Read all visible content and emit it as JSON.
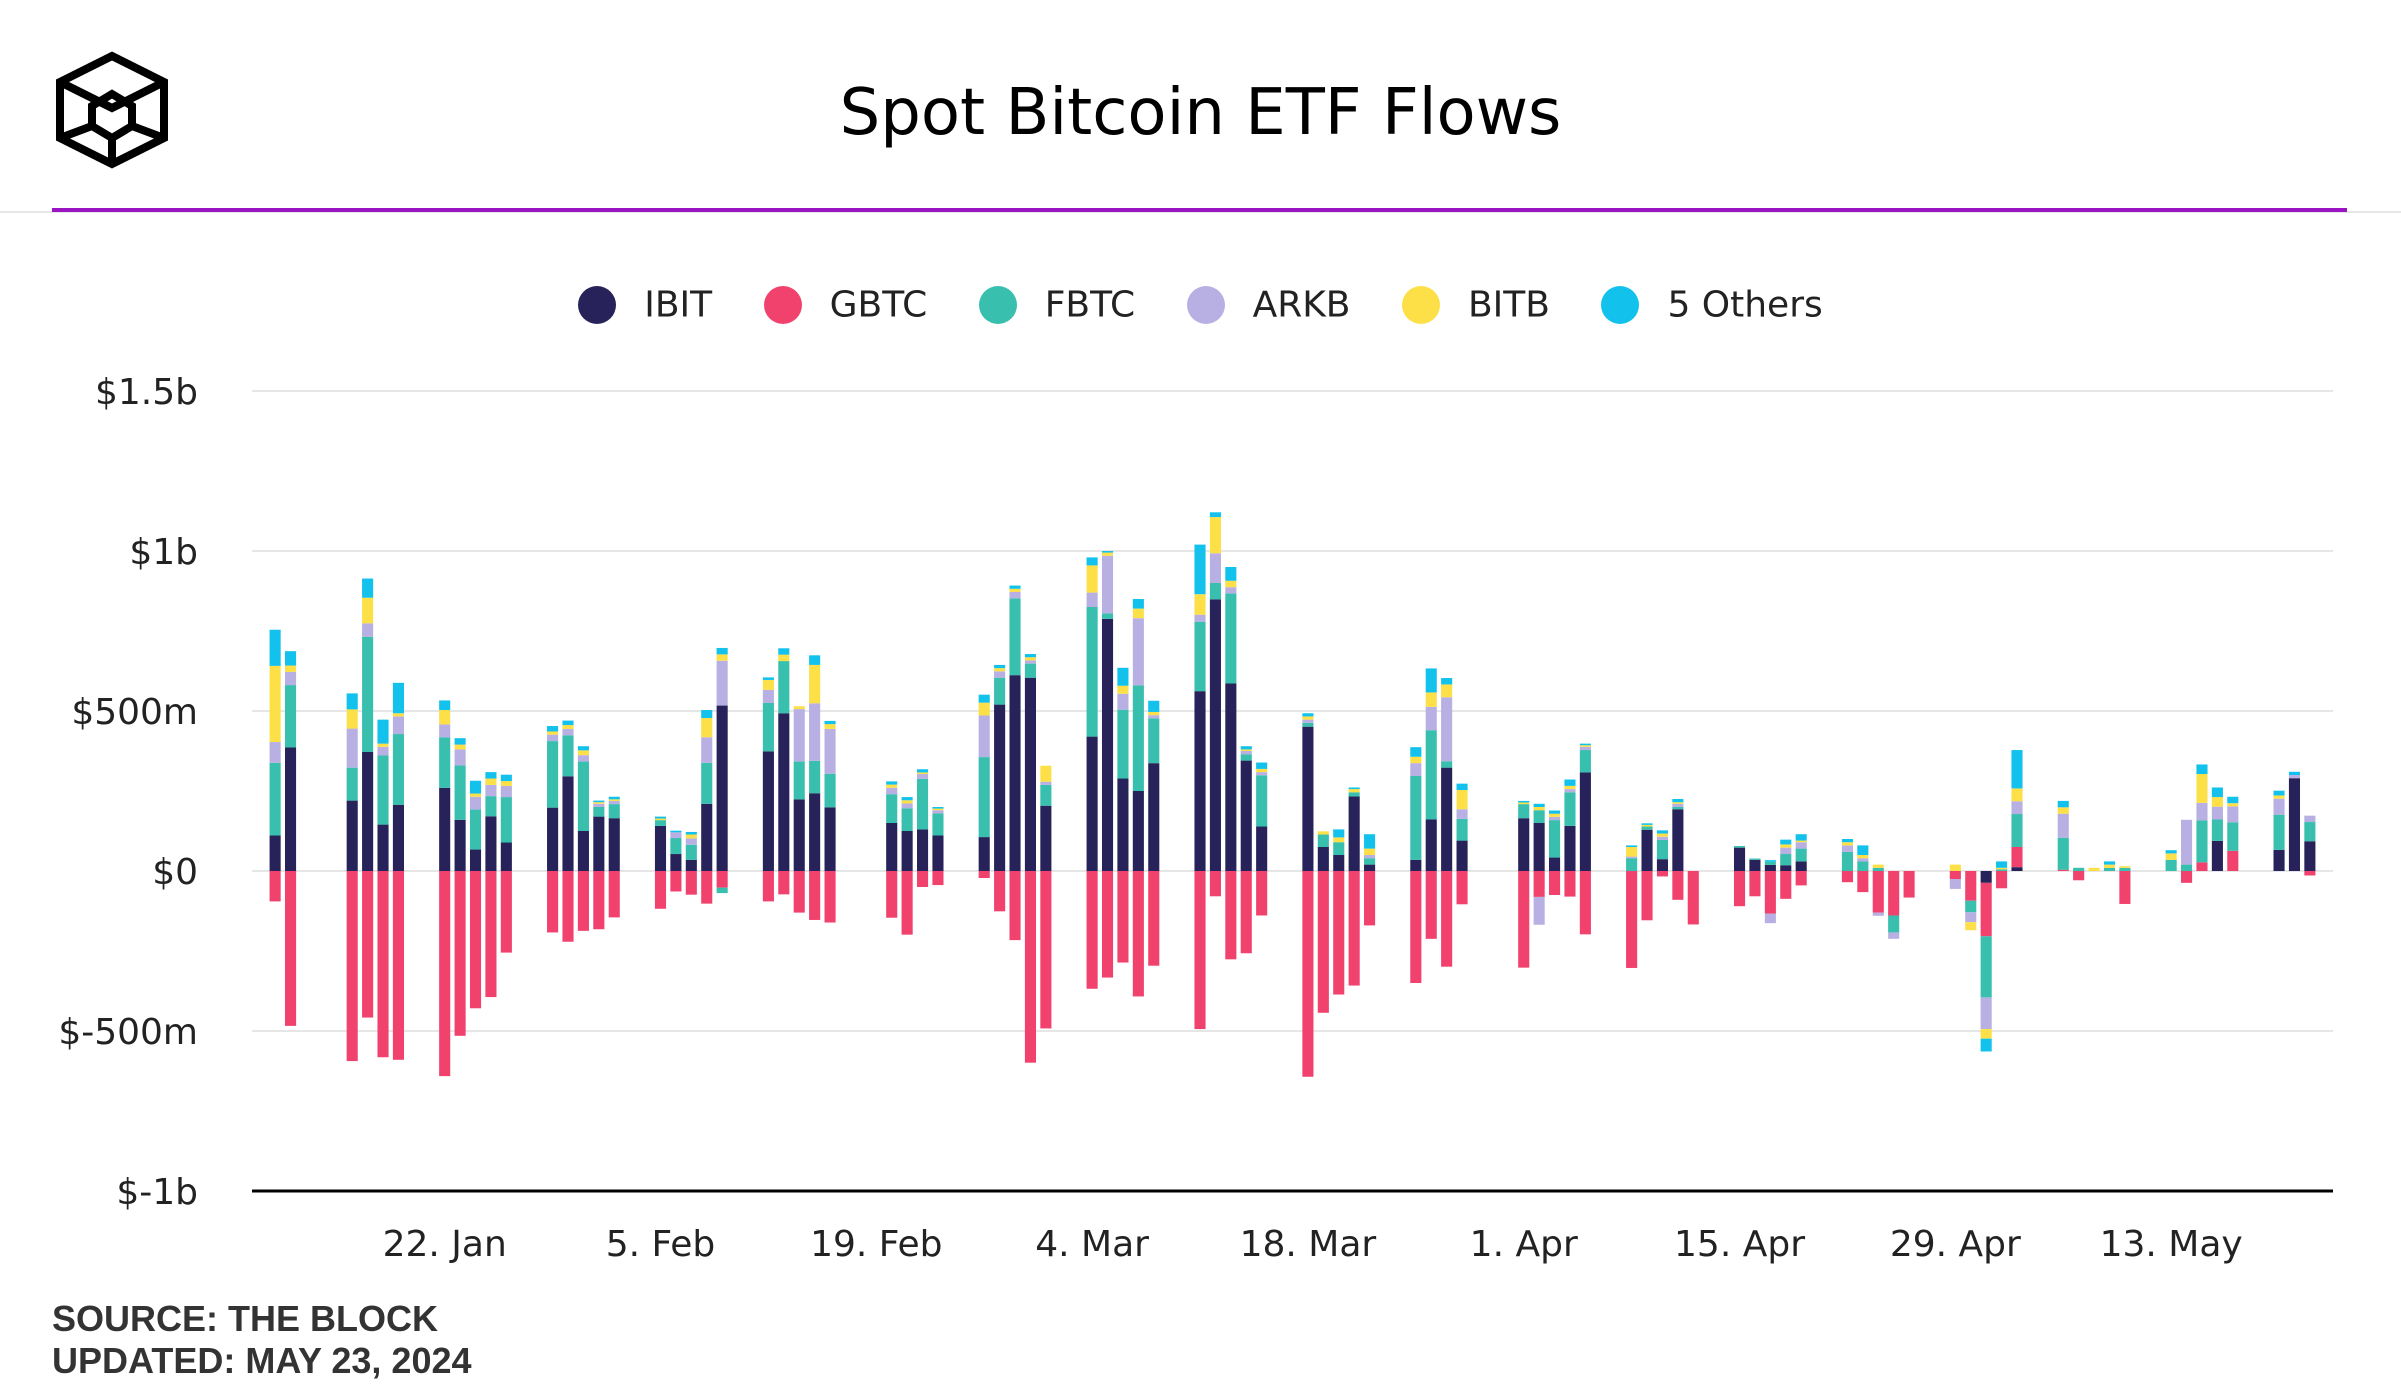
{
  "header": {
    "title": "Spot Bitcoin ETF Flows",
    "logo_icon": "the-block-cube-icon"
  },
  "footer": {
    "source": "SOURCE: THE BLOCK",
    "updated": "UPDATED: MAY 23, 2024"
  },
  "colors": {
    "IBIT": "#27235a",
    "GBTC": "#f1426e",
    "FBTC": "#38bfae",
    "ARKB": "#b8b0e2",
    "BITB": "#fde047",
    "Others": "#12c2ec",
    "accent": "#9a14c4"
  },
  "legend": [
    {
      "key": "IBIT",
      "label": "IBIT"
    },
    {
      "key": "GBTC",
      "label": "GBTC"
    },
    {
      "key": "FBTC",
      "label": "FBTC"
    },
    {
      "key": "ARKB",
      "label": "ARKB"
    },
    {
      "key": "BITB",
      "label": "BITB"
    },
    {
      "key": "Others",
      "label": "5 Others"
    }
  ],
  "chart_data": {
    "type": "bar",
    "stacked": true,
    "title": "Spot Bitcoin ETF Flows",
    "legend_position": "top-center",
    "grid": true,
    "y_unit": "USD millions",
    "ylim": [
      -1000,
      1500
    ],
    "y_ticks": [
      {
        "value": 1500,
        "label": "$1.5b"
      },
      {
        "value": 1000,
        "label": "$1b"
      },
      {
        "value": 500,
        "label": "$500m"
      },
      {
        "value": 0,
        "label": "$0"
      },
      {
        "value": -500,
        "label": "$-500m"
      },
      {
        "value": -1000,
        "label": "$-1b"
      }
    ],
    "x_ticks": [
      {
        "label": "22. Jan",
        "date": "2024-01-22"
      },
      {
        "label": "5. Feb",
        "date": "2024-02-05"
      },
      {
        "label": "19. Feb",
        "date": "2024-02-19"
      },
      {
        "label": "4. Mar",
        "date": "2024-03-04"
      },
      {
        "label": "18. Mar",
        "date": "2024-03-18"
      },
      {
        "label": "1. Apr",
        "date": "2024-04-01"
      },
      {
        "label": "15. Apr",
        "date": "2024-04-15"
      },
      {
        "label": "29. Apr",
        "date": "2024-04-29"
      },
      {
        "label": "13. May",
        "date": "2024-05-13"
      }
    ],
    "x_range": [
      "2024-01-10",
      "2024-05-24"
    ],
    "series_order": [
      "IBIT",
      "GBTC",
      "FBTC",
      "ARKB",
      "BITB",
      "Others"
    ],
    "days": [
      {
        "date": "2024-01-11",
        "IBIT": 111,
        "GBTC": -95,
        "FBTC": 227,
        "ARKB": 65,
        "BITB": 238,
        "Others": 113
      },
      {
        "date": "2024-01-12",
        "IBIT": 386,
        "GBTC": -484,
        "FBTC": 195,
        "ARKB": 41,
        "BITB": 20,
        "Others": 45
      },
      {
        "date": "2024-01-16",
        "IBIT": 220,
        "GBTC": -594,
        "FBTC": 103,
        "ARKB": 122,
        "BITB": 60,
        "Others": 50
      },
      {
        "date": "2024-01-17",
        "IBIT": 372,
        "GBTC": -458,
        "FBTC": 360,
        "ARKB": 42,
        "BITB": 80,
        "Others": 60
      },
      {
        "date": "2024-01-18",
        "IBIT": 145,
        "GBTC": -582,
        "FBTC": 216,
        "ARKB": 27,
        "BITB": 10,
        "Others": 75
      },
      {
        "date": "2024-01-19",
        "IBIT": 207,
        "GBTC": -590,
        "FBTC": 221,
        "ARKB": 55,
        "BITB": 10,
        "Others": 95
      },
      {
        "date": "2024-01-22",
        "IBIT": 260,
        "GBTC": -641,
        "FBTC": 158,
        "ARKB": 40,
        "BITB": 45,
        "Others": 30
      },
      {
        "date": "2024-01-23",
        "IBIT": 160,
        "GBTC": -515,
        "FBTC": 170,
        "ARKB": 50,
        "BITB": 15,
        "Others": 20
      },
      {
        "date": "2024-01-24",
        "IBIT": 67,
        "GBTC": -429,
        "FBTC": 125,
        "ARKB": 40,
        "BITB": 10,
        "Others": 40
      },
      {
        "date": "2024-01-25",
        "IBIT": 171,
        "GBTC": -394,
        "FBTC": 63,
        "ARKB": 35,
        "BITB": 20,
        "Others": 20
      },
      {
        "date": "2024-01-26",
        "IBIT": 89,
        "GBTC": -255,
        "FBTC": 142,
        "ARKB": 35,
        "BITB": 15,
        "Others": 20
      },
      {
        "date": "2024-01-29",
        "IBIT": 198,
        "GBTC": -192,
        "FBTC": 208,
        "ARKB": 20,
        "BITB": 10,
        "Others": 17
      },
      {
        "date": "2024-01-30",
        "IBIT": 296,
        "GBTC": -221,
        "FBTC": 128,
        "ARKB": 20,
        "BITB": 12,
        "Others": 14
      },
      {
        "date": "2024-01-31",
        "IBIT": 125,
        "GBTC": -187,
        "FBTC": 217,
        "ARKB": 20,
        "BITB": 15,
        "Others": 13
      },
      {
        "date": "2024-02-01",
        "IBIT": 170,
        "GBTC": -182,
        "FBTC": 30,
        "ARKB": 10,
        "BITB": 5,
        "Others": 5
      },
      {
        "date": "2024-02-02",
        "IBIT": 165,
        "GBTC": -145,
        "FBTC": 44,
        "ARKB": 10,
        "BITB": 5,
        "Others": 8
      },
      {
        "date": "2024-02-05",
        "IBIT": 141,
        "GBTC": -118,
        "FBTC": 18,
        "ARKB": 0,
        "BITB": 5,
        "Others": 6
      },
      {
        "date": "2024-02-06",
        "IBIT": 53,
        "GBTC": -64,
        "FBTC": 50,
        "ARKB": 18,
        "BITB": 0,
        "Others": 5
      },
      {
        "date": "2024-02-07",
        "IBIT": 35,
        "GBTC": -74,
        "FBTC": 47,
        "ARKB": 20,
        "BITB": 12,
        "Others": 8
      },
      {
        "date": "2024-02-08",
        "IBIT": 210,
        "GBTC": -102,
        "FBTC": 128,
        "ARKB": 80,
        "BITB": 60,
        "Others": 25
      },
      {
        "date": "2024-02-09",
        "IBIT": 517,
        "GBTC": -52,
        "FBTC": -17,
        "ARKB": 140,
        "BITB": 20,
        "Others": 20
      },
      {
        "date": "2024-02-12",
        "IBIT": 374,
        "GBTC": -95,
        "FBTC": 151,
        "ARKB": 41,
        "BITB": 31,
        "Others": 8
      },
      {
        "date": "2024-02-13",
        "IBIT": 493,
        "GBTC": -73,
        "FBTC": 163,
        "ARKB": 0,
        "BITB": 20,
        "Others": 20
      },
      {
        "date": "2024-02-14",
        "IBIT": 224,
        "GBTC": -130,
        "FBTC": 118,
        "ARKB": 164,
        "BITB": 9,
        "Others": 0
      },
      {
        "date": "2024-02-15",
        "IBIT": 243,
        "GBTC": -153,
        "FBTC": 101,
        "ARKB": 180,
        "BITB": 120,
        "Others": 30
      },
      {
        "date": "2024-02-16",
        "IBIT": 199,
        "GBTC": -161,
        "FBTC": 105,
        "ARKB": 140,
        "BITB": 15,
        "Others": 10
      },
      {
        "date": "2024-02-20",
        "IBIT": 150,
        "GBTC": -146,
        "FBTC": 90,
        "ARKB": 20,
        "BITB": 10,
        "Others": 10
      },
      {
        "date": "2024-02-21",
        "IBIT": 125,
        "GBTC": -199,
        "FBTC": 71,
        "ARKB": 15,
        "BITB": 10,
        "Others": 10
      },
      {
        "date": "2024-02-22",
        "IBIT": 130,
        "GBTC": -50,
        "FBTC": 158,
        "ARKB": 15,
        "BITB": 5,
        "Others": 10
      },
      {
        "date": "2024-02-23",
        "IBIT": 111,
        "GBTC": -44,
        "FBTC": 69,
        "ARKB": 10,
        "BITB": 5,
        "Others": 5
      },
      {
        "date": "2024-02-26",
        "IBIT": 106,
        "GBTC": -22,
        "FBTC": 250,
        "ARKB": 130,
        "BITB": 40,
        "Others": 25
      },
      {
        "date": "2024-02-27",
        "IBIT": 520,
        "GBTC": -126,
        "FBTC": 84,
        "ARKB": 20,
        "BITB": 10,
        "Others": 10
      },
      {
        "date": "2024-02-28",
        "IBIT": 612,
        "GBTC": -216,
        "FBTC": 240,
        "ARKB": 20,
        "BITB": 10,
        "Others": 10
      },
      {
        "date": "2024-02-29",
        "IBIT": 604,
        "GBTC": -599,
        "FBTC": 44,
        "ARKB": 10,
        "BITB": 10,
        "Others": 10
      },
      {
        "date": "2024-03-01",
        "IBIT": 204,
        "GBTC": -492,
        "FBTC": 65,
        "ARKB": 10,
        "BITB": 50,
        "Others": 0
      },
      {
        "date": "2024-03-04",
        "IBIT": 420,
        "GBTC": -368,
        "FBTC": 405,
        "ARKB": 45,
        "BITB": 85,
        "Others": 25
      },
      {
        "date": "2024-03-05",
        "IBIT": 788,
        "GBTC": -333,
        "FBTC": 17,
        "ARKB": 180,
        "BITB": 10,
        "Others": 5
      },
      {
        "date": "2024-03-06",
        "IBIT": 289,
        "GBTC": -286,
        "FBTC": 215,
        "ARKB": 50,
        "BITB": 25,
        "Others": 56
      },
      {
        "date": "2024-03-07",
        "IBIT": 250,
        "GBTC": -392,
        "FBTC": 330,
        "ARKB": 210,
        "BITB": 30,
        "Others": 30
      },
      {
        "date": "2024-03-08",
        "IBIT": 337,
        "GBTC": -296,
        "FBTC": 140,
        "ARKB": 10,
        "BITB": 10,
        "Others": 35
      },
      {
        "date": "2024-03-11",
        "IBIT": 562,
        "GBTC": -494,
        "FBTC": 217,
        "ARKB": 22,
        "BITB": 64,
        "Others": 155
      },
      {
        "date": "2024-03-12",
        "IBIT": 849,
        "GBTC": -79,
        "FBTC": 51,
        "ARKB": 93,
        "BITB": 113,
        "Others": 15
      },
      {
        "date": "2024-03-13",
        "IBIT": 586,
        "GBTC": -276,
        "FBTC": 281,
        "ARKB": 20,
        "BITB": 20,
        "Others": 43
      },
      {
        "date": "2024-03-14",
        "IBIT": 345,
        "GBTC": -257,
        "FBTC": 20,
        "ARKB": 10,
        "BITB": 5,
        "Others": 10
      },
      {
        "date": "2024-03-15",
        "IBIT": 139,
        "GBTC": -139,
        "FBTC": 160,
        "ARKB": 10,
        "BITB": 10,
        "Others": 20
      },
      {
        "date": "2024-03-18",
        "IBIT": 451,
        "GBTC": -643,
        "FBTC": 12,
        "ARKB": 10,
        "BITB": 10,
        "Others": 10
      },
      {
        "date": "2024-03-19",
        "IBIT": 75,
        "GBTC": -443,
        "FBTC": 39,
        "ARKB": 0,
        "BITB": 10,
        "Others": 0
      },
      {
        "date": "2024-03-20",
        "IBIT": 50,
        "GBTC": -386,
        "FBTC": 40,
        "ARKB": 0,
        "BITB": 15,
        "Others": 25
      },
      {
        "date": "2024-03-21",
        "IBIT": 233,
        "GBTC": -358,
        "FBTC": 13,
        "ARKB": 0,
        "BITB": 10,
        "Others": 5
      },
      {
        "date": "2024-03-22",
        "IBIT": 20,
        "GBTC": -170,
        "FBTC": 20,
        "ARKB": 10,
        "BITB": 20,
        "Others": 45
      },
      {
        "date": "2024-03-25",
        "IBIT": 35,
        "GBTC": -350,
        "FBTC": 262,
        "ARKB": 40,
        "BITB": 20,
        "Others": 30
      },
      {
        "date": "2024-03-26",
        "IBIT": 161,
        "GBTC": -212,
        "FBTC": 279,
        "ARKB": 73,
        "BITB": 45,
        "Others": 75
      },
      {
        "date": "2024-03-27",
        "IBIT": 323,
        "GBTC": -299,
        "FBTC": 20,
        "ARKB": 200,
        "BITB": 40,
        "Others": 20
      },
      {
        "date": "2024-03-28",
        "IBIT": 95,
        "GBTC": -104,
        "FBTC": 68,
        "ARKB": 30,
        "BITB": 60,
        "Others": 20
      },
      {
        "date": "2024-04-01",
        "IBIT": 165,
        "GBTC": -302,
        "FBTC": 44,
        "ARKB": 0,
        "BITB": 5,
        "Others": 5
      },
      {
        "date": "2024-04-02",
        "IBIT": 150,
        "GBTC": -81,
        "FBTC": 40,
        "ARKB": -87,
        "BITB": 10,
        "Others": 10
      },
      {
        "date": "2024-04-03",
        "IBIT": 42,
        "GBTC": -75,
        "FBTC": 117,
        "ARKB": 10,
        "BITB": 10,
        "Others": 10
      },
      {
        "date": "2024-04-04",
        "IBIT": 141,
        "GBTC": -80,
        "FBTC": 105,
        "ARKB": 10,
        "BITB": 10,
        "Others": 20
      },
      {
        "date": "2024-04-05",
        "IBIT": 308,
        "GBTC": -198,
        "FBTC": 70,
        "ARKB": 10,
        "BITB": 5,
        "Others": 5
      },
      {
        "date": "2024-04-08",
        "IBIT": 0,
        "GBTC": -303,
        "FBTC": 40,
        "ARKB": 5,
        "BITB": 30,
        "Others": 5
      },
      {
        "date": "2024-04-09",
        "IBIT": 129,
        "GBTC": -154,
        "FBTC": 10,
        "ARKB": 0,
        "BITB": 5,
        "Others": 5
      },
      {
        "date": "2024-04-10",
        "IBIT": 37,
        "GBTC": -17,
        "FBTC": 60,
        "ARKB": 10,
        "BITB": 10,
        "Others": 10
      },
      {
        "date": "2024-04-11",
        "IBIT": 193,
        "GBTC": -90,
        "FBTC": 7,
        "ARKB": 10,
        "BITB": 5,
        "Others": 10
      },
      {
        "date": "2024-04-12",
        "IBIT": 0,
        "GBTC": -167,
        "FBTC": 0,
        "ARKB": 0,
        "BITB": 0,
        "Others": 0
      },
      {
        "date": "2024-04-15",
        "IBIT": 73,
        "GBTC": -110,
        "FBTC": 5,
        "ARKB": 0,
        "BITB": 0,
        "Others": 0
      },
      {
        "date": "2024-04-16",
        "IBIT": 35,
        "GBTC": -79,
        "FBTC": 4,
        "ARKB": 0,
        "BITB": 0,
        "Others": 0
      },
      {
        "date": "2024-04-17",
        "IBIT": 19,
        "GBTC": -133,
        "FBTC": 10,
        "ARKB": -30,
        "BITB": 0,
        "Others": 5
      },
      {
        "date": "2024-04-18",
        "IBIT": 18,
        "GBTC": -87,
        "FBTC": 35,
        "ARKB": 20,
        "BITB": 10,
        "Others": 15
      },
      {
        "date": "2024-04-19",
        "IBIT": 30,
        "GBTC": -45,
        "FBTC": 40,
        "ARKB": 20,
        "BITB": 5,
        "Others": 20
      },
      {
        "date": "2024-04-22",
        "IBIT": 0,
        "GBTC": -35,
        "FBTC": 60,
        "ARKB": 20,
        "BITB": 10,
        "Others": 10
      },
      {
        "date": "2024-04-23",
        "IBIT": 0,
        "GBTC": -66,
        "FBTC": 30,
        "ARKB": 10,
        "BITB": 10,
        "Others": 30
      },
      {
        "date": "2024-04-24",
        "IBIT": 0,
        "GBTC": -130,
        "FBTC": 10,
        "ARKB": -10,
        "BITB": 10,
        "Others": 0
      },
      {
        "date": "2024-04-25",
        "IBIT": 0,
        "GBTC": -139,
        "FBTC": -53,
        "ARKB": -20,
        "BITB": 0,
        "Others": 0
      },
      {
        "date": "2024-04-26",
        "IBIT": 0,
        "GBTC": -83,
        "FBTC": 0,
        "ARKB": 0,
        "BITB": 0,
        "Others": 0
      },
      {
        "date": "2024-04-29",
        "IBIT": 0,
        "GBTC": -25,
        "FBTC": 0,
        "ARKB": -31,
        "BITB": 20,
        "Others": 0
      },
      {
        "date": "2024-04-30",
        "IBIT": 0,
        "GBTC": -93,
        "FBTC": -36,
        "ARKB": -31,
        "BITB": -25,
        "Others": 0
      },
      {
        "date": "2024-05-01",
        "IBIT": -37,
        "GBTC": -167,
        "FBTC": -191,
        "ARKB": -99,
        "BITB": -30,
        "Others": -40
      },
      {
        "date": "2024-05-02",
        "IBIT": 0,
        "GBTC": -54,
        "FBTC": 5,
        "ARKB": 0,
        "BITB": 5,
        "Others": 20
      },
      {
        "date": "2024-05-03",
        "IBIT": 12,
        "GBTC": 63,
        "FBTC": 103,
        "ARKB": 40,
        "BITB": 40,
        "Others": 120
      },
      {
        "date": "2024-05-06",
        "IBIT": 0,
        "GBTC": 4,
        "FBTC": 100,
        "ARKB": 75,
        "BITB": 20,
        "Others": 20
      },
      {
        "date": "2024-05-07",
        "IBIT": 0,
        "GBTC": -29,
        "FBTC": 10,
        "ARKB": 0,
        "BITB": 0,
        "Others": 0
      },
      {
        "date": "2024-05-08",
        "IBIT": 0,
        "GBTC": 0,
        "FBTC": 0,
        "ARKB": 0,
        "BITB": 10,
        "Others": 0
      },
      {
        "date": "2024-05-09",
        "IBIT": 0,
        "GBTC": 0,
        "FBTC": 10,
        "ARKB": 0,
        "BITB": 10,
        "Others": 10
      },
      {
        "date": "2024-05-10",
        "IBIT": 0,
        "GBTC": -103,
        "FBTC": 10,
        "ARKB": 0,
        "BITB": 5,
        "Others": 0
      },
      {
        "date": "2024-05-13",
        "IBIT": 0,
        "GBTC": 0,
        "FBTC": 35,
        "ARKB": 0,
        "BITB": 20,
        "Others": 10
      },
      {
        "date": "2024-05-14",
        "IBIT": 0,
        "GBTC": -37,
        "FBTC": 20,
        "ARKB": 140,
        "BITB": 0,
        "Others": 0
      },
      {
        "date": "2024-05-15",
        "IBIT": 0,
        "GBTC": 27,
        "FBTC": 131,
        "ARKB": 55,
        "BITB": 90,
        "Others": 30
      },
      {
        "date": "2024-05-16",
        "IBIT": 94,
        "GBTC": 0,
        "FBTC": 67,
        "ARKB": 40,
        "BITB": 30,
        "Others": 30
      },
      {
        "date": "2024-05-17",
        "IBIT": 0,
        "GBTC": 63,
        "FBTC": 89,
        "ARKB": 50,
        "BITB": 10,
        "Others": 20
      },
      {
        "date": "2024-05-20",
        "IBIT": 66,
        "GBTC": 0,
        "FBTC": 110,
        "ARKB": 50,
        "BITB": 10,
        "Others": 15
      },
      {
        "date": "2024-05-21",
        "IBIT": 290,
        "GBTC": 0,
        "FBTC": 0,
        "ARKB": 10,
        "BITB": 0,
        "Others": 10
      },
      {
        "date": "2024-05-22",
        "IBIT": 93,
        "GBTC": -14,
        "FBTC": 60,
        "ARKB": 20,
        "BITB": 0,
        "Others": 0
      }
    ]
  }
}
